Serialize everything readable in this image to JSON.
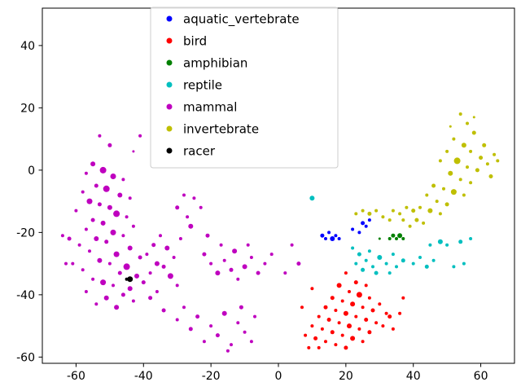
{
  "chart_data": {
    "type": "scatter",
    "title": "",
    "xlabel": "",
    "ylabel": "",
    "xlim": [
      -70,
      70
    ],
    "ylim": [
      -62,
      52
    ],
    "xticks": [
      -60,
      -40,
      -20,
      0,
      20,
      40,
      60
    ],
    "yticks": [
      -60,
      -40,
      -20,
      0,
      20,
      40
    ],
    "grid": false,
    "legend": {
      "position": "upper-center-left",
      "entries": [
        "aquatic_vertebrate",
        "bird",
        "amphibian",
        "reptile",
        "mammal",
        "invertebrate",
        "racer"
      ]
    },
    "series": [
      {
        "name": "aquatic_vertebrate",
        "color": "#0000ff",
        "points": [
          [
            13,
            -21,
            2.5
          ],
          [
            14,
            -22,
            2
          ],
          [
            15,
            -20,
            2
          ],
          [
            16,
            -22,
            3
          ],
          [
            17,
            -21,
            2
          ],
          [
            18,
            -22,
            2
          ],
          [
            22,
            -19,
            2
          ],
          [
            25,
            -17,
            2.5
          ],
          [
            26,
            -18,
            2
          ],
          [
            27,
            -16,
            2
          ],
          [
            24,
            -20,
            2
          ]
        ]
      },
      {
        "name": "bird",
        "color": "#ff0000",
        "points": [
          [
            20,
            -33,
            2
          ],
          [
            23,
            -36,
            2.5
          ],
          [
            26,
            -37,
            2
          ],
          [
            18,
            -37,
            3
          ],
          [
            21,
            -39,
            2
          ],
          [
            24,
            -40,
            3.5
          ],
          [
            27,
            -41,
            2
          ],
          [
            16,
            -41,
            2.5
          ],
          [
            19,
            -42,
            2
          ],
          [
            22,
            -43,
            3
          ],
          [
            25,
            -44,
            2
          ],
          [
            28,
            -45,
            2.5
          ],
          [
            30,
            -43,
            2
          ],
          [
            32,
            -46,
            2
          ],
          [
            14,
            -44,
            2.5
          ],
          [
            17,
            -45,
            2
          ],
          [
            20,
            -46,
            3
          ],
          [
            23,
            -47,
            2
          ],
          [
            26,
            -48,
            2.5
          ],
          [
            29,
            -49,
            2
          ],
          [
            12,
            -47,
            2
          ],
          [
            15,
            -48,
            2.5
          ],
          [
            18,
            -49,
            2
          ],
          [
            21,
            -50,
            3
          ],
          [
            24,
            -51,
            2
          ],
          [
            27,
            -52,
            2.5
          ],
          [
            10,
            -50,
            2
          ],
          [
            13,
            -51,
            2
          ],
          [
            16,
            -52,
            2.5
          ],
          [
            19,
            -53,
            2
          ],
          [
            22,
            -54,
            3
          ],
          [
            25,
            -55,
            2
          ],
          [
            8,
            -53,
            2
          ],
          [
            11,
            -54,
            2.5
          ],
          [
            14,
            -55,
            2
          ],
          [
            17,
            -56,
            2
          ],
          [
            20,
            -57,
            2.5
          ],
          [
            12,
            -57,
            2
          ],
          [
            9,
            -57,
            2
          ],
          [
            31,
            -50,
            2
          ],
          [
            33,
            -47,
            2.5
          ],
          [
            36,
            -46,
            2
          ],
          [
            34,
            -51,
            2
          ],
          [
            10,
            -38,
            2
          ],
          [
            7,
            -44,
            2
          ],
          [
            37,
            -41,
            2
          ]
        ]
      },
      {
        "name": "amphibian",
        "color": "#008000",
        "points": [
          [
            33,
            -22,
            2
          ],
          [
            34,
            -21,
            2.5
          ],
          [
            35,
            -22,
            2
          ],
          [
            36,
            -21,
            3
          ],
          [
            37,
            -22,
            2
          ],
          [
            30,
            -22,
            1.5
          ]
        ]
      },
      {
        "name": "reptile",
        "color": "#00bfbf",
        "points": [
          [
            10,
            -9,
            3
          ],
          [
            22,
            -25,
            2
          ],
          [
            24,
            -27,
            2.5
          ],
          [
            26,
            -29,
            2
          ],
          [
            28,
            -31,
            2
          ],
          [
            25,
            -32,
            2.5
          ],
          [
            27,
            -26,
            2
          ],
          [
            30,
            -28,
            3
          ],
          [
            32,
            -30,
            2
          ],
          [
            34,
            -27,
            2
          ],
          [
            29,
            -33,
            2.5
          ],
          [
            23,
            -30,
            2
          ],
          [
            35,
            -31,
            2
          ],
          [
            37,
            -29,
            2.5
          ],
          [
            33,
            -33,
            2
          ],
          [
            40,
            -30,
            2
          ],
          [
            42,
            -28,
            2
          ],
          [
            44,
            -31,
            2.5
          ],
          [
            46,
            -29,
            2
          ],
          [
            48,
            -23,
            3
          ],
          [
            50,
            -24,
            2
          ],
          [
            52,
            -31,
            2
          ],
          [
            54,
            -23,
            2.5
          ],
          [
            57,
            -22,
            2
          ],
          [
            55,
            -30,
            2
          ],
          [
            45,
            -24,
            2
          ]
        ]
      },
      {
        "name": "mammal",
        "color": "#bf00bf",
        "points": [
          [
            -53,
            11,
            2
          ],
          [
            -50,
            8,
            2.5
          ],
          [
            -41,
            11,
            2
          ],
          [
            -43,
            6,
            1.5
          ],
          [
            -55,
            2,
            3
          ],
          [
            -52,
            0,
            4
          ],
          [
            -57,
            -1,
            2
          ],
          [
            -49,
            -2,
            3.5
          ],
          [
            -46,
            -3,
            2
          ],
          [
            -54,
            -5,
            2.5
          ],
          [
            -51,
            -6,
            4
          ],
          [
            -58,
            -7,
            2
          ],
          [
            -47,
            -8,
            3
          ],
          [
            -44,
            -9,
            2
          ],
          [
            -56,
            -10,
            3.5
          ],
          [
            -53,
            -11,
            2.5
          ],
          [
            -50,
            -12,
            3
          ],
          [
            -60,
            -13,
            2
          ],
          [
            -48,
            -14,
            4
          ],
          [
            -45,
            -15,
            2
          ],
          [
            -55,
            -16,
            2.5
          ],
          [
            -52,
            -17,
            3
          ],
          [
            -43,
            -18,
            2
          ],
          [
            -57,
            -19,
            2
          ],
          [
            -62,
            -22,
            2.5
          ],
          [
            -49,
            -20,
            3.5
          ],
          [
            -46,
            -21,
            2
          ],
          [
            -54,
            -22,
            3
          ],
          [
            -51,
            -23,
            2.5
          ],
          [
            -59,
            -24,
            2
          ],
          [
            -44,
            -25,
            3
          ],
          [
            -56,
            -26,
            2
          ],
          [
            -48,
            -27,
            3.5
          ],
          [
            -41,
            -28,
            2.5
          ],
          [
            -53,
            -29,
            3
          ],
          [
            -50,
            -30,
            2
          ],
          [
            -61,
            -30,
            2
          ],
          [
            -45,
            -31,
            4
          ],
          [
            -58,
            -32,
            2
          ],
          [
            -47,
            -33,
            2.5
          ],
          [
            -42,
            -34,
            3
          ],
          [
            -55,
            -35,
            2
          ],
          [
            -52,
            -36,
            3.5
          ],
          [
            -49,
            -37,
            2
          ],
          [
            -44,
            -38,
            3
          ],
          [
            -57,
            -39,
            2
          ],
          [
            -46,
            -40,
            2.5
          ],
          [
            -51,
            -41,
            3
          ],
          [
            -43,
            -42,
            2
          ],
          [
            -54,
            -43,
            2
          ],
          [
            -48,
            -44,
            3
          ],
          [
            -40,
            -36,
            2.5
          ],
          [
            -38,
            -33,
            2
          ],
          [
            -36,
            -30,
            3
          ],
          [
            -39,
            -27,
            2
          ],
          [
            -37,
            -24,
            2.5
          ],
          [
            -35,
            -21,
            2
          ],
          [
            -33,
            -25,
            3
          ],
          [
            -31,
            -28,
            2
          ],
          [
            -34,
            -31,
            2.5
          ],
          [
            -32,
            -34,
            3.5
          ],
          [
            -30,
            -37,
            2
          ],
          [
            -36,
            -39,
            2
          ],
          [
            -38,
            -41,
            2.5
          ],
          [
            -29,
            -22,
            2
          ],
          [
            -28,
            -8,
            2
          ],
          [
            -30,
            -12,
            2.5
          ],
          [
            -27,
            -15,
            2
          ],
          [
            -25,
            -9,
            2
          ],
          [
            -26,
            -18,
            3
          ],
          [
            -23,
            -12,
            2
          ],
          [
            -22,
            -27,
            2.5
          ],
          [
            -20,
            -30,
            2
          ],
          [
            -18,
            -33,
            3
          ],
          [
            -16,
            -29,
            2
          ],
          [
            -14,
            -32,
            2.5
          ],
          [
            -12,
            -35,
            2
          ],
          [
            -10,
            -31,
            3
          ],
          [
            -8,
            -28,
            2
          ],
          [
            -6,
            -33,
            2.5
          ],
          [
            -4,
            -30,
            2
          ],
          [
            -2,
            -27,
            2
          ],
          [
            -13,
            -26,
            3
          ],
          [
            -17,
            -24,
            2
          ],
          [
            -21,
            -21,
            2.5
          ],
          [
            -9,
            -24,
            2
          ],
          [
            4,
            -24,
            2
          ],
          [
            6,
            -30,
            2.5
          ],
          [
            2,
            -33,
            2
          ],
          [
            -28,
            -44,
            2
          ],
          [
            -24,
            -47,
            2.5
          ],
          [
            -20,
            -50,
            2
          ],
          [
            -16,
            -46,
            3
          ],
          [
            -12,
            -49,
            2
          ],
          [
            -18,
            -53,
            2.5
          ],
          [
            -14,
            -56,
            2
          ],
          [
            -10,
            -52,
            2
          ],
          [
            -22,
            -55,
            2
          ],
          [
            -26,
            -51,
            2.5
          ],
          [
            -8,
            -55,
            2
          ],
          [
            -15,
            -58,
            2
          ],
          [
            -11,
            -44,
            2.5
          ],
          [
            -7,
            -47,
            2
          ],
          [
            -30,
            -48,
            2
          ],
          [
            -34,
            -45,
            2.5
          ],
          [
            -64,
            -21,
            2
          ],
          [
            -63,
            -30,
            2
          ]
        ]
      },
      {
        "name": "invertebrate",
        "color": "#bfbf00",
        "points": [
          [
            54,
            18,
            2
          ],
          [
            56,
            15,
            2
          ],
          [
            58,
            12,
            2.5
          ],
          [
            52,
            10,
            2
          ],
          [
            55,
            8,
            3
          ],
          [
            57,
            6,
            2
          ],
          [
            60,
            4,
            2.5
          ],
          [
            53,
            3,
            4
          ],
          [
            56,
            1,
            2
          ],
          [
            59,
            0,
            2.5
          ],
          [
            50,
            6,
            2
          ],
          [
            48,
            3,
            2
          ],
          [
            51,
            -1,
            3
          ],
          [
            54,
            -3,
            2
          ],
          [
            57,
            -4,
            2
          ],
          [
            62,
            2,
            2
          ],
          [
            64,
            5,
            2
          ],
          [
            61,
            8,
            2.5
          ],
          [
            49,
            -6,
            2
          ],
          [
            52,
            -7,
            3.5
          ],
          [
            55,
            -8,
            2
          ],
          [
            46,
            -5,
            2.5
          ],
          [
            44,
            -8,
            2
          ],
          [
            47,
            -10,
            2
          ],
          [
            50,
            -11,
            2.5
          ],
          [
            42,
            -12,
            2
          ],
          [
            45,
            -13,
            3
          ],
          [
            48,
            -14,
            2
          ],
          [
            40,
            -13,
            2.5
          ],
          [
            38,
            -12,
            2
          ],
          [
            36,
            -14,
            2
          ],
          [
            34,
            -13,
            2
          ],
          [
            41,
            -16,
            2.5
          ],
          [
            43,
            -17,
            2
          ],
          [
            39,
            -18,
            2
          ],
          [
            37,
            -16,
            2
          ],
          [
            29,
            -13,
            2
          ],
          [
            27,
            -14,
            2.5
          ],
          [
            31,
            -15,
            2
          ],
          [
            25,
            -13,
            2
          ],
          [
            23,
            -14,
            2
          ],
          [
            33,
            -16,
            2
          ],
          [
            65,
            3,
            2
          ],
          [
            63,
            -2,
            2.5
          ],
          [
            58,
            17,
            1.5
          ],
          [
            51,
            14,
            1.5
          ]
        ]
      },
      {
        "name": "racer",
        "color": "#000000",
        "points": [
          [
            -44,
            -35,
            3.5
          ],
          [
            -45,
            -35,
            2
          ]
        ]
      }
    ]
  }
}
